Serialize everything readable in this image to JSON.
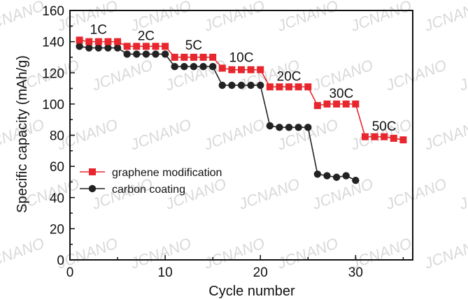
{
  "watermark": "JCNANO",
  "chart_data": {
    "type": "scatter",
    "xlabel": "Cycle number",
    "ylabel": "Specific capacity (mAh/g)",
    "xlim": [
      0,
      36
    ],
    "ylim": [
      0,
      160
    ],
    "xticks": [
      0,
      10,
      20,
      30
    ],
    "yticks": [
      0,
      20,
      40,
      60,
      80,
      100,
      120,
      140,
      160
    ],
    "legend_position": "center-left",
    "rate_labels": [
      {
        "text": "1C",
        "x": 3,
        "y": 145
      },
      {
        "text": "2C",
        "x": 8,
        "y": 141
      },
      {
        "text": "5C",
        "x": 13,
        "y": 135
      },
      {
        "text": "10C",
        "x": 18,
        "y": 127
      },
      {
        "text": "20C",
        "x": 23,
        "y": 115
      },
      {
        "text": "30C",
        "x": 28.5,
        "y": 104
      },
      {
        "text": "50C",
        "x": 33,
        "y": 83
      }
    ],
    "series": [
      {
        "name": "graphene modification",
        "color": "#e8262d",
        "marker": "square",
        "x": [
          1,
          2,
          3,
          4,
          5,
          6,
          7,
          8,
          9,
          10,
          11,
          12,
          13,
          14,
          15,
          16,
          17,
          18,
          19,
          20,
          21,
          22,
          23,
          24,
          25,
          26,
          27,
          28,
          29,
          30,
          31,
          32,
          33,
          34,
          35
        ],
        "y": [
          141,
          140,
          140,
          140,
          140,
          137,
          137,
          137,
          137,
          137,
          130,
          130,
          130,
          130,
          130,
          123,
          122,
          122,
          122,
          122,
          111,
          111,
          111,
          111,
          111,
          99,
          100,
          100,
          100,
          100,
          79,
          79,
          79,
          78,
          77
        ]
      },
      {
        "name": "carbon coating",
        "color": "#222222",
        "marker": "circle",
        "x": [
          1,
          2,
          3,
          4,
          5,
          6,
          7,
          8,
          9,
          10,
          11,
          12,
          13,
          14,
          15,
          16,
          17,
          18,
          19,
          20,
          21,
          22,
          23,
          24,
          25,
          26,
          27,
          28,
          29,
          30
        ],
        "y": [
          137,
          136,
          136,
          136,
          136,
          132,
          132,
          132,
          132,
          132,
          124,
          124,
          124,
          124,
          124,
          112,
          112,
          112,
          112,
          112,
          86,
          85,
          85,
          85,
          85,
          55,
          54,
          53,
          54,
          51
        ]
      }
    ]
  }
}
